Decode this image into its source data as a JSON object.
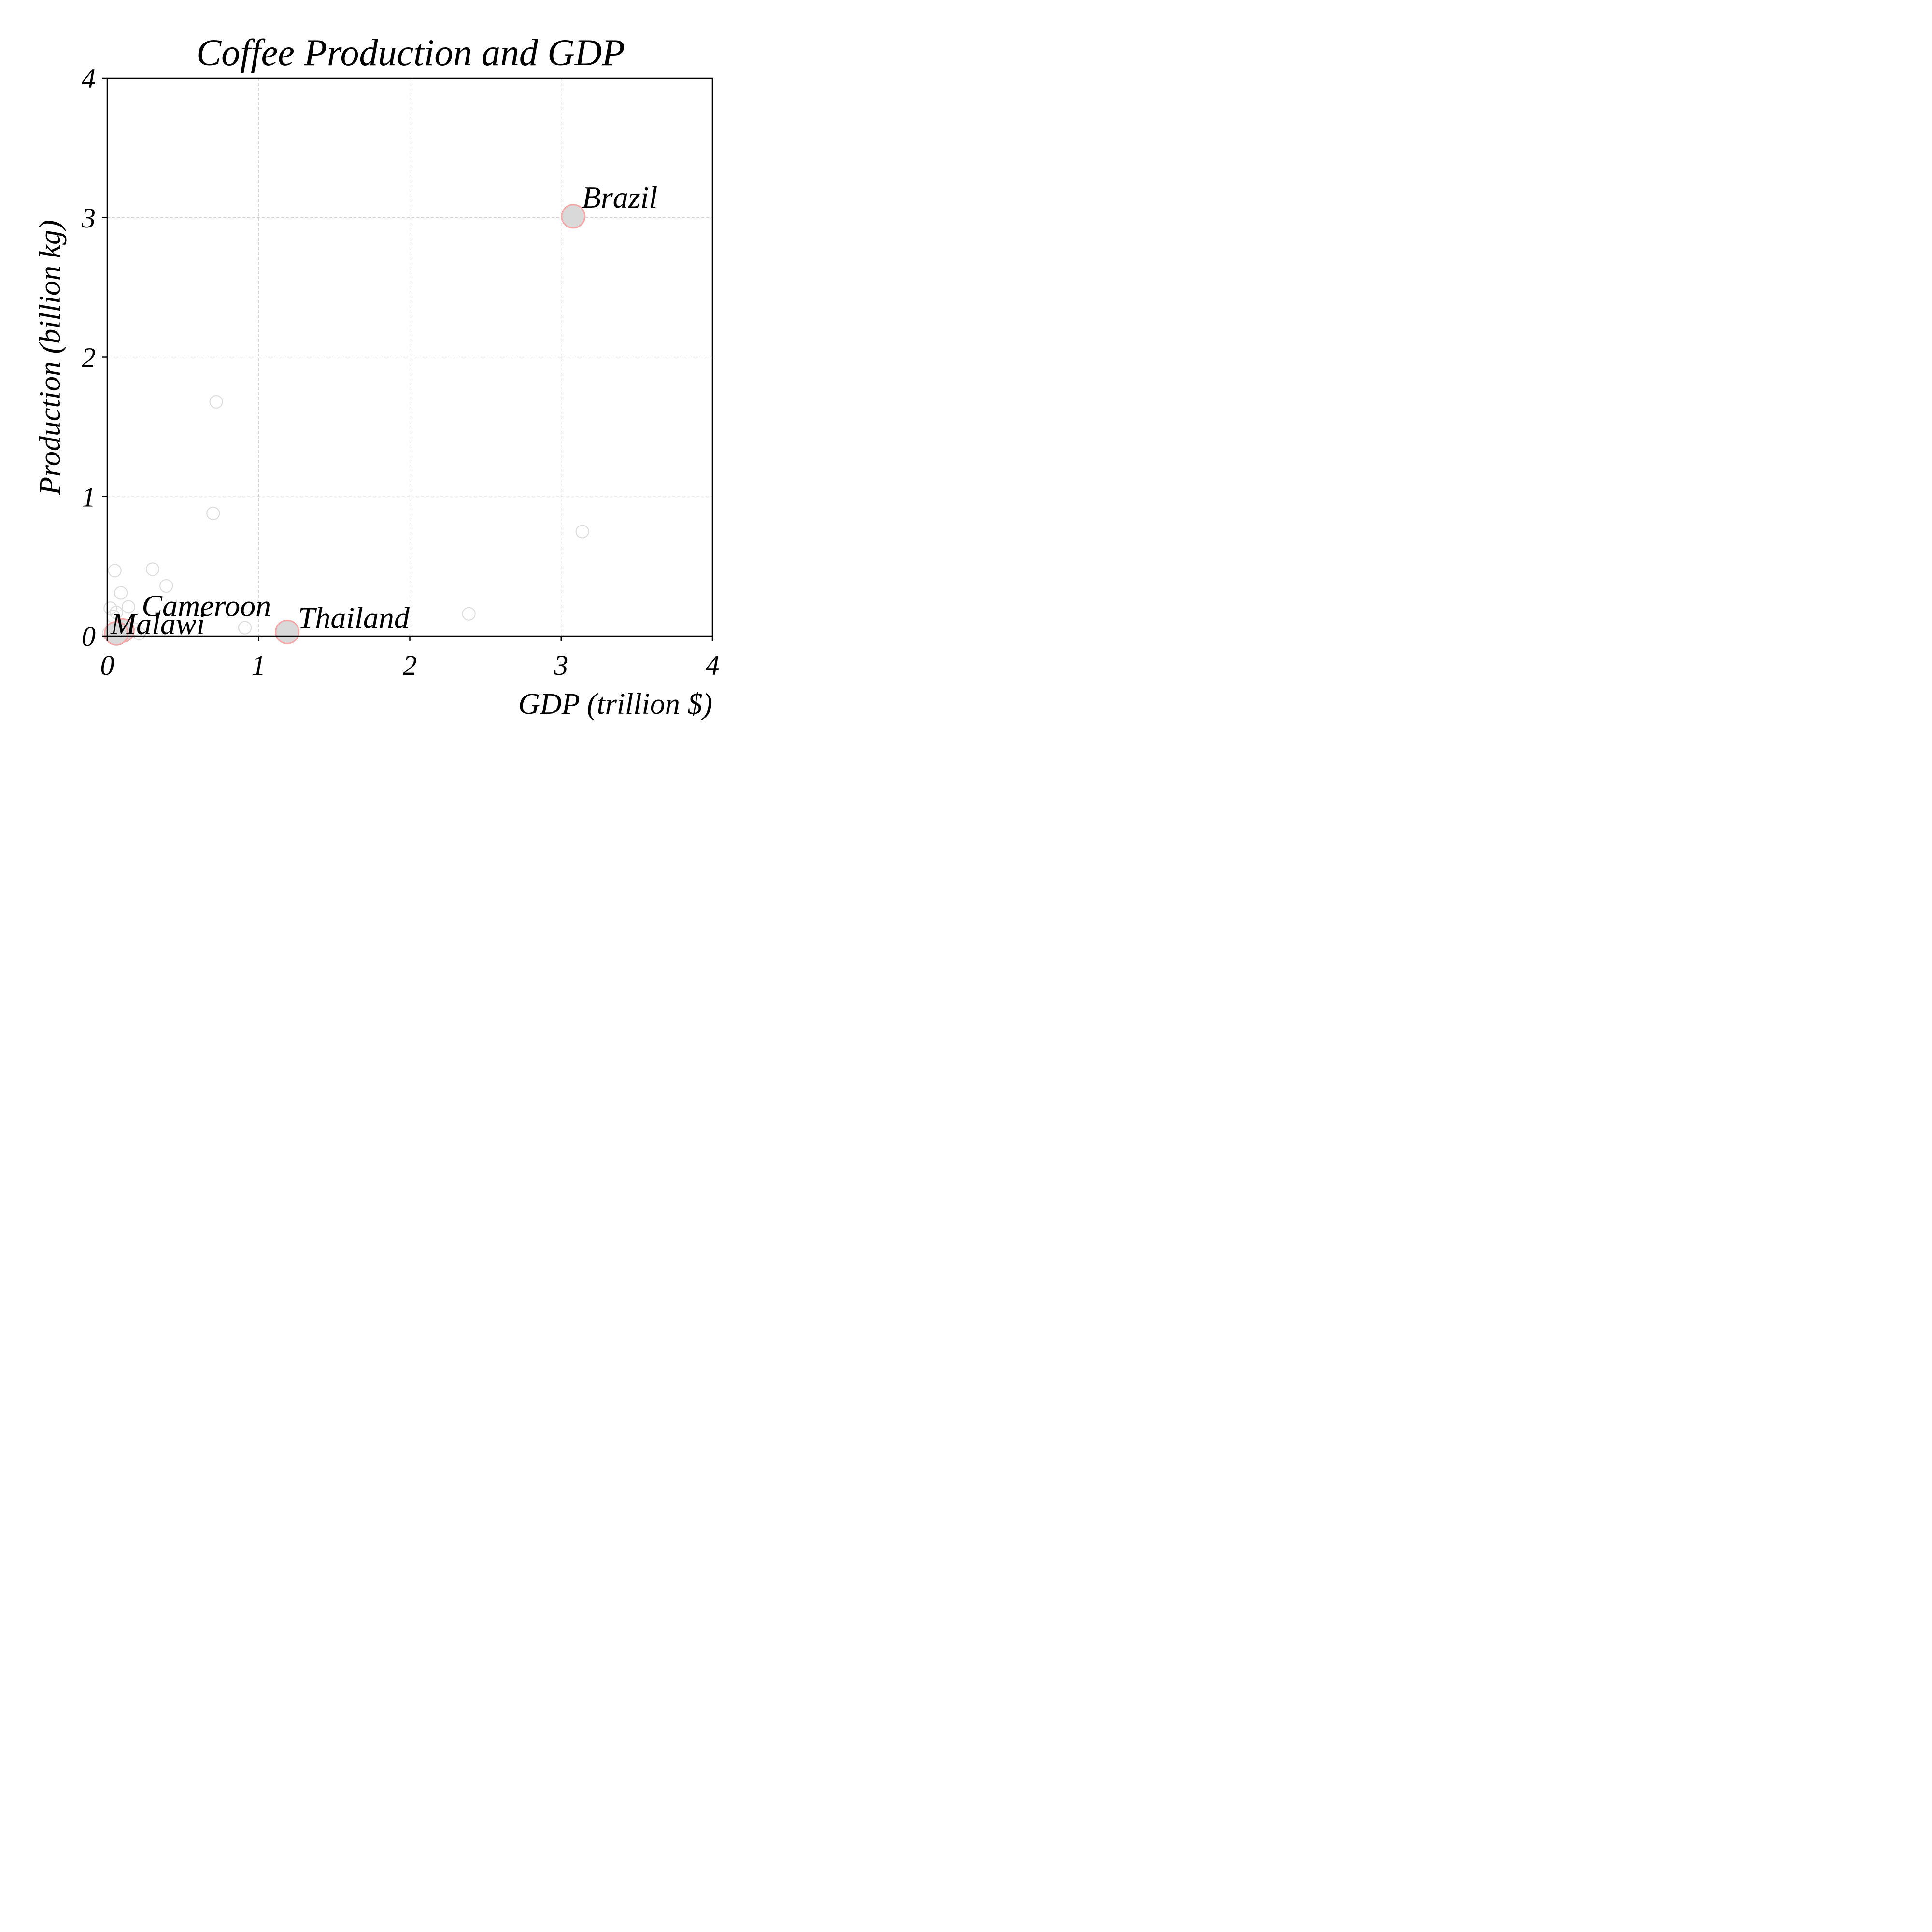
{
  "chart_data": {
    "type": "scatter",
    "title": "Coffee Production and GDP",
    "xlabel": "GDP (trillion $)",
    "ylabel": "Production (billion kg)",
    "xlim": [
      0,
      4
    ],
    "ylim": [
      0,
      4
    ],
    "xticks": [
      "0",
      "1",
      "2",
      "3",
      "4"
    ],
    "yticks": [
      "0",
      "1",
      "2",
      "3",
      "4"
    ],
    "grid": true,
    "points": [
      {
        "x": 0.72,
        "y": 1.68
      },
      {
        "x": 0.7,
        "y": 0.88
      },
      {
        "x": 3.14,
        "y": 0.75
      },
      {
        "x": 2.39,
        "y": 0.16
      },
      {
        "x": 0.91,
        "y": 0.06
      },
      {
        "x": 0.3,
        "y": 0.48
      },
      {
        "x": 0.05,
        "y": 0.47
      },
      {
        "x": 0.39,
        "y": 0.36
      },
      {
        "x": 0.09,
        "y": 0.31
      },
      {
        "x": 0.14,
        "y": 0.21
      },
      {
        "x": 0.02,
        "y": 0.2
      },
      {
        "x": 0.04,
        "y": 0.14
      },
      {
        "x": 0.06,
        "y": 0.17
      },
      {
        "x": 0.11,
        "y": 0.08
      },
      {
        "x": 0.18,
        "y": 0.05
      },
      {
        "x": 0.21,
        "y": 0.02
      },
      {
        "x": 0.03,
        "y": 0.04
      },
      {
        "x": 0.07,
        "y": 0.01
      },
      {
        "x": 0.01,
        "y": 0.02
      }
    ],
    "highlighted": [
      {
        "label": "Brazil",
        "x": 3.08,
        "y": 3.01
      },
      {
        "label": "Thailand",
        "x": 1.19,
        "y": 0.03
      },
      {
        "label": "Cameroon",
        "x": 0.1,
        "y": 0.04
      },
      {
        "label": "Malawi",
        "x": 0.06,
        "y": 0.02
      }
    ],
    "colors": {
      "point_edge": "#dddddd",
      "highlight_fill": "#d9d9d9",
      "highlight_edge": "#f4a6a6"
    }
  }
}
